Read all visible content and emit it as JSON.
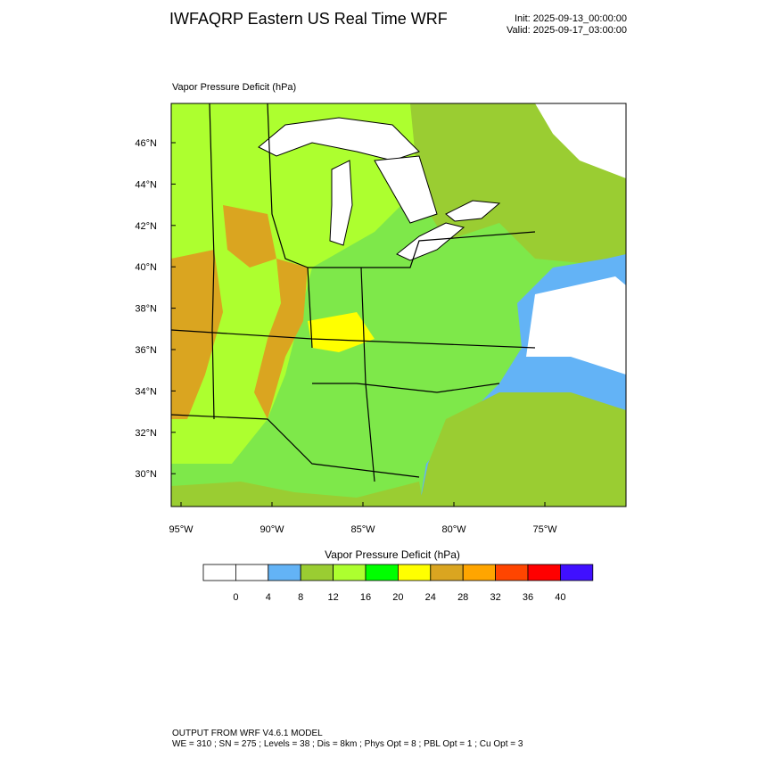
{
  "header": {
    "title": "IWFAQRP Eastern US Real Time WRF",
    "init": "Init: 2025-09-13_00:00:00",
    "valid": "Valid: 2025-09-17_03:00:00"
  },
  "map": {
    "subtitle": "Vapor Pressure Deficit   (hPa)",
    "lat_labels": [
      "46°N",
      "44°N",
      "42°N",
      "40°N",
      "38°N",
      "36°N",
      "34°N",
      "32°N",
      "30°N"
    ],
    "lon_labels": [
      "95°W",
      "90°W",
      "85°W",
      "80°W",
      "75°W"
    ]
  },
  "colorbar": {
    "title": "Vapor Pressure Deficit  (hPa)",
    "colors": [
      "#ffffff",
      "#ffffff",
      "#63b3f6",
      "#9acd32",
      "#adff2f",
      "#00ff00",
      "#ffff00",
      "#daa520",
      "#ffa500",
      "#ff4500",
      "#ff0000",
      "#4010ff"
    ],
    "ticks": [
      0,
      4,
      8,
      12,
      16,
      20,
      24,
      28,
      32,
      36,
      40
    ]
  },
  "footer": {
    "line1": "OUTPUT FROM WRF V4.6.1 MODEL",
    "line2": "WE = 310 ; SN = 275 ; Levels = 38 ; Dis = 8km ; Phys Opt = 8 ; PBL Opt = 1 ; Cu Opt = 3"
  }
}
